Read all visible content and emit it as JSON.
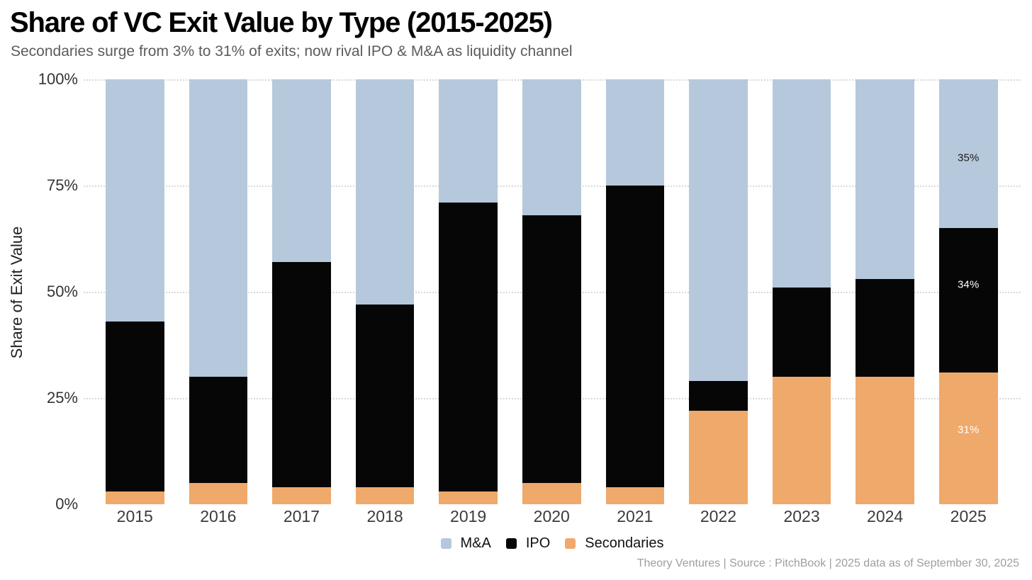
{
  "header": {
    "title": "Share of VC Exit Value by Type (2015-2025)",
    "subtitle": "Secondaries surge from 3% to 31% of exits; now rival IPO & M&A as liquidity channel"
  },
  "chart_data": {
    "type": "bar",
    "stacked": true,
    "title": "Share of VC Exit Value by Type (2015-2025)",
    "subtitle": "Secondaries surge from 3% to 31% of exits; now rival IPO & M&A as liquidity channel",
    "ylabel": "Share of Exit Value",
    "xlabel": "",
    "ylim": [
      0,
      100
    ],
    "ytick_values": [
      0,
      25,
      50,
      75,
      100
    ],
    "ytick_labels": [
      "0%",
      "25%",
      "50%",
      "75%",
      "100%"
    ],
    "grid": "horizontal-dotted",
    "legend_position": "bottom-center",
    "categories": [
      "2015",
      "2016",
      "2017",
      "2018",
      "2019",
      "2020",
      "2021",
      "2022",
      "2023",
      "2024",
      "2025"
    ],
    "series": [
      {
        "name": "M&A",
        "color": "#B6C8DB",
        "values": [
          57,
          70,
          43,
          53,
          29,
          32,
          25,
          71,
          49,
          47,
          35
        ]
      },
      {
        "name": "IPO",
        "color": "#060606",
        "values": [
          40,
          25,
          53,
          43,
          68,
          63,
          71,
          7,
          21,
          23,
          34
        ]
      },
      {
        "name": "Secondaries",
        "color": "#EFA96B",
        "values": [
          3,
          5,
          4,
          4,
          3,
          5,
          4,
          22,
          30,
          30,
          31
        ]
      }
    ],
    "annotations": [
      {
        "category": "2025",
        "series": "M&A",
        "text": "35%",
        "text_color": "#1a1a1a",
        "offset_y": 6
      },
      {
        "category": "2025",
        "series": "IPO",
        "text": "34%",
        "text_color": "#ffffff",
        "offset_y": -22
      },
      {
        "category": "2025",
        "series": "Secondaries",
        "text": "31%",
        "text_color": "#ffffff",
        "offset_y": -12
      }
    ]
  },
  "footer": {
    "credit": "Theory Ventures | Source : PitchBook | 2025 data as of September 30, 2025"
  }
}
